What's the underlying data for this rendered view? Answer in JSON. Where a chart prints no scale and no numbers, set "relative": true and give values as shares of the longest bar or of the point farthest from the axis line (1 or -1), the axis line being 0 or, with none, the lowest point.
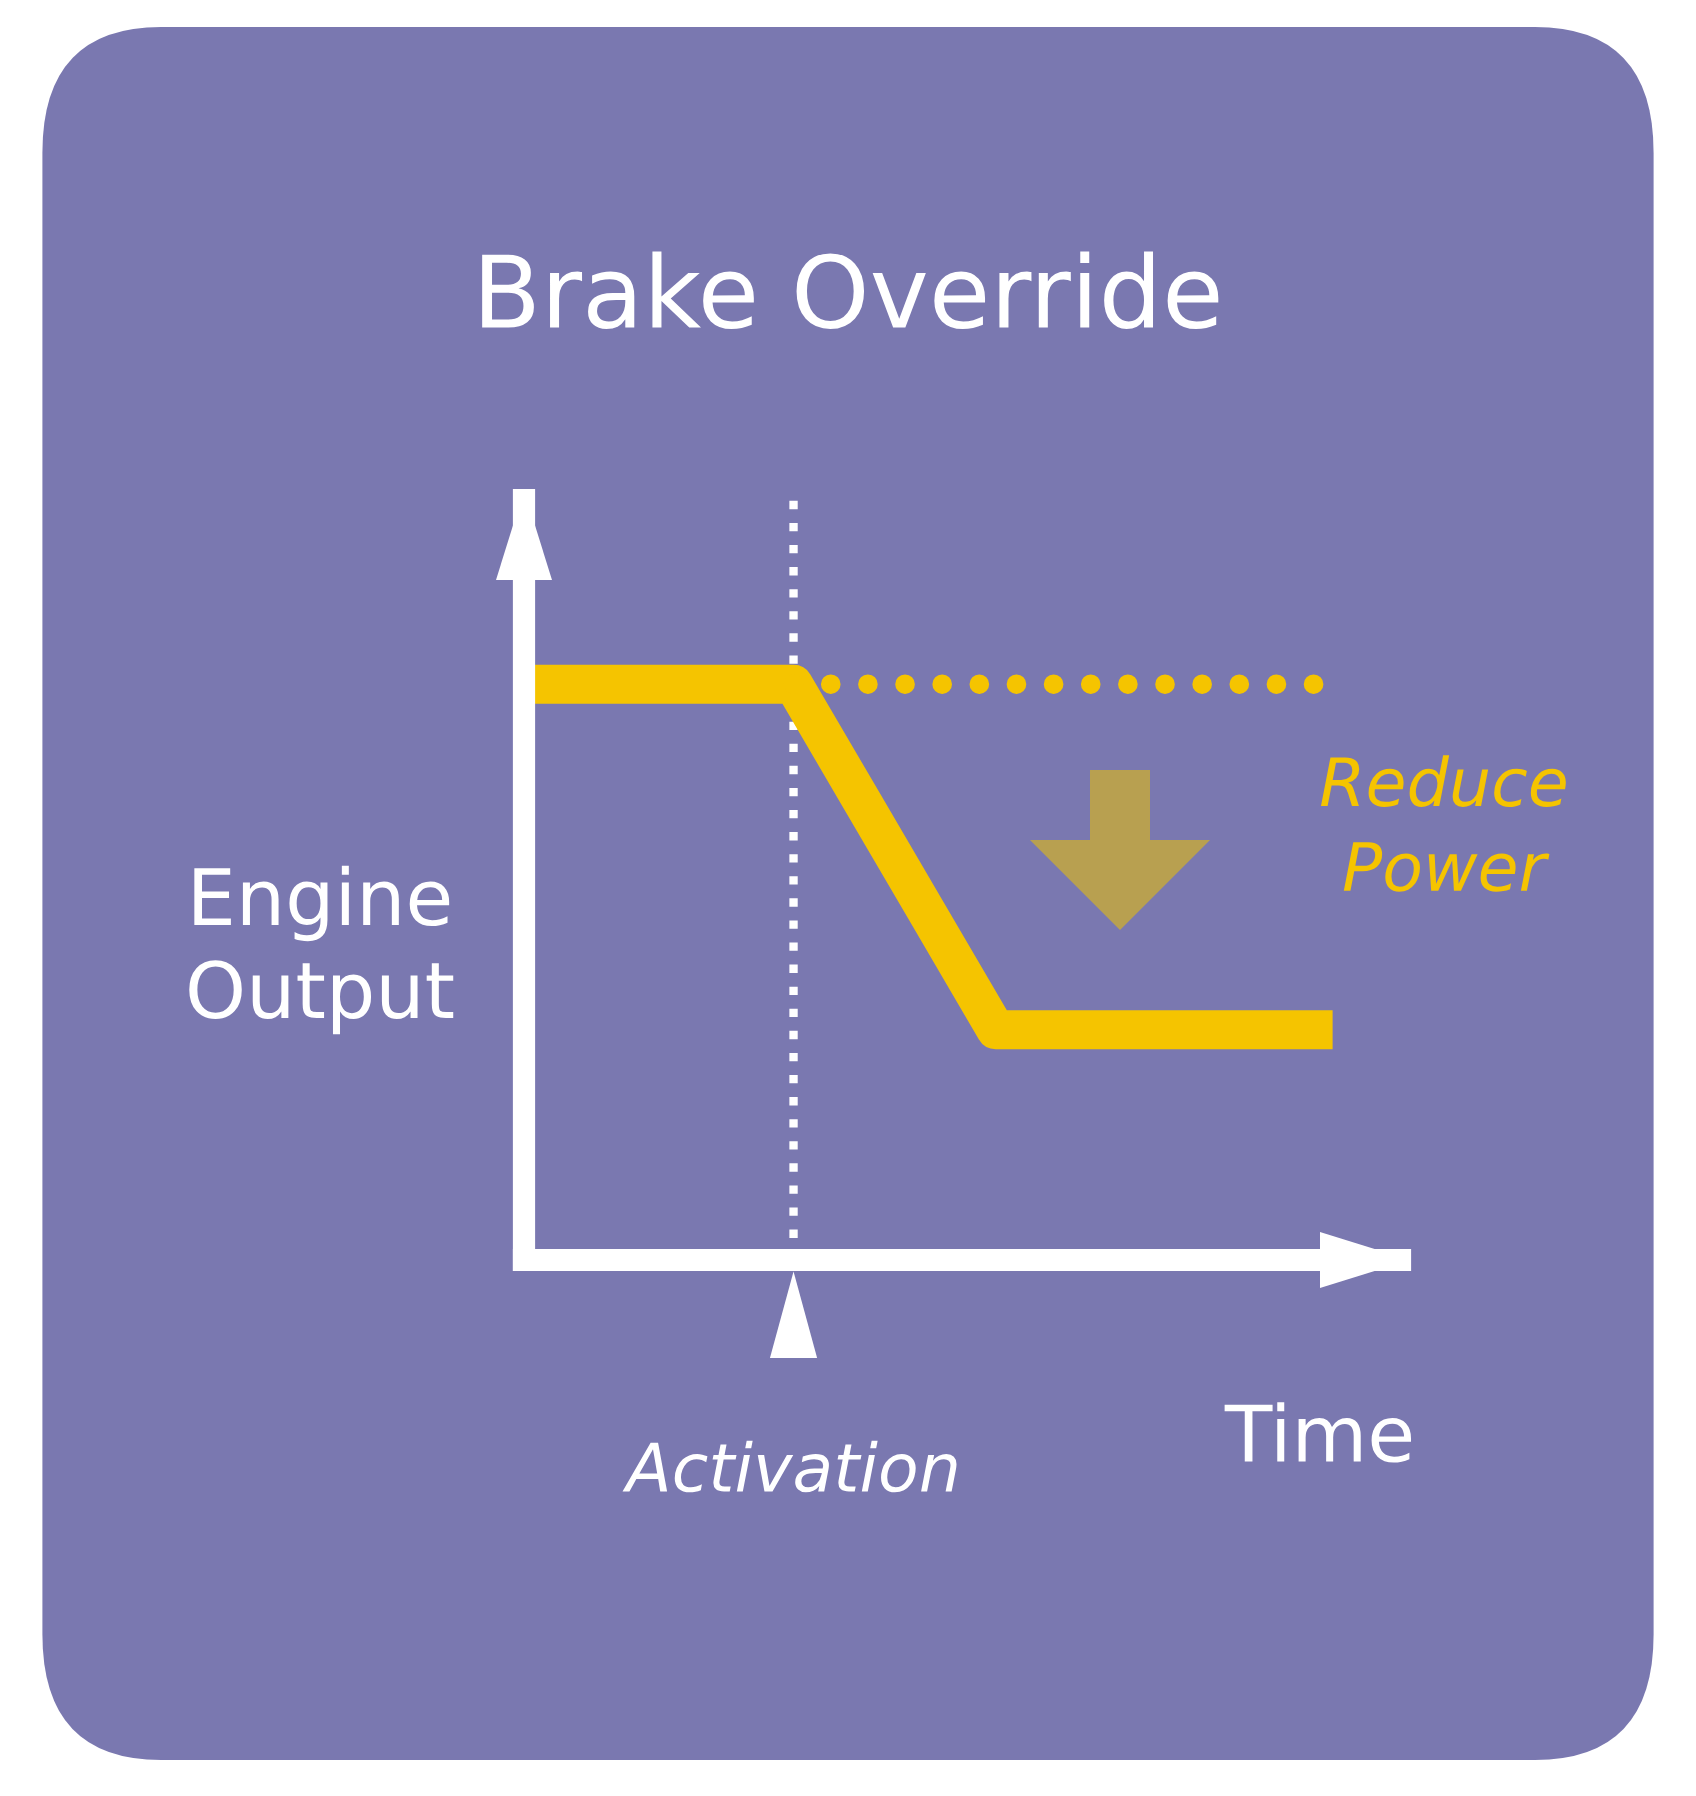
{
  "chart_data": {
    "type": "line",
    "title": "Brake Override",
    "xlabel": "Time",
    "ylabel": "Engine\nOutput",
    "relative": true,
    "categories": [
      null,
      null,
      null,
      null,
      null,
      null,
      null,
      null,
      null,
      null,
      null,
      null,
      null
    ],
    "series": [
      {
        "color": "#f5c400",
        "line_style": "solid",
        "values": [
          1,
          1,
          1,
          1,
          1,
          0.8,
          0.6,
          0.4,
          0.4,
          0.4,
          0.4,
          0.4,
          0.4
        ]
      },
      {
        "color": "#f5c400",
        "line_style": "dotted",
        "values": [
          null,
          null,
          null,
          null,
          1,
          1,
          1,
          1,
          1,
          1,
          1,
          1,
          1
        ]
      }
    ],
    "annotations": [
      "Reduce\nPower",
      "Activation"
    ],
    "grid": false,
    "legend": false,
    "marker": "none"
  }
}
